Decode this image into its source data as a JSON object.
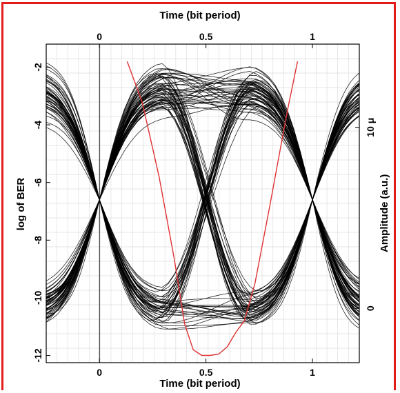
{
  "frame": {
    "border_color": "#e31b1b"
  },
  "chart_data": {
    "type": "line",
    "title": "",
    "x_top_label": "Time (bit period)",
    "x_bottom_label": "Time (bit period)",
    "y_left_label": "log of BER",
    "y_right_label": "Amplitude (a.u.)",
    "x_range": [
      -0.25,
      1.22
    ],
    "y_left_range": [
      -12.25,
      -1.2
    ],
    "y_right_range": [
      -3,
      14.6
    ],
    "x_ticks": [
      0,
      0.5,
      1
    ],
    "x_tick_labels": [
      "0",
      "0.5",
      "1"
    ],
    "y_left_ticks": [
      -2,
      -4,
      -6,
      -8,
      -10,
      -12
    ],
    "y_left_tick_labels": [
      "-2",
      "-4",
      "-6",
      "-8",
      "-10",
      "-12"
    ],
    "y_right_ticks": [
      10,
      0
    ],
    "y_right_tick_labels": [
      "10 μ",
      "0"
    ],
    "grid": true,
    "eye_diagram": {
      "bit_period": 1,
      "high_level": 12,
      "low_level": 0,
      "crossing_times": [
        0,
        1
      ],
      "crossing_level": 6,
      "trace_color": "#000000"
    },
    "series": [
      {
        "name": "",
        "color": "#e03030",
        "axis": "left",
        "x": [
          0.13,
          0.2,
          0.28,
          0.35,
          0.4,
          0.44,
          0.48,
          0.52,
          0.56,
          0.6,
          0.64,
          0.68,
          0.73,
          0.8,
          0.88,
          0.93
        ],
        "y": [
          -1.8,
          -3.2,
          -5.8,
          -8.6,
          -10.9,
          -11.8,
          -12.0,
          -12.0,
          -11.95,
          -11.7,
          -11.2,
          -10.8,
          -9.5,
          -6.8,
          -3.6,
          -1.8
        ]
      }
    ]
  }
}
